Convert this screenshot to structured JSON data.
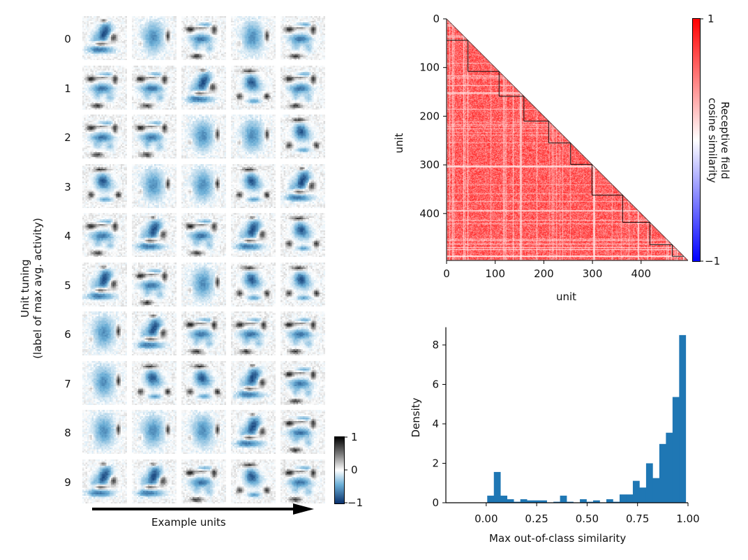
{
  "left_panel": {
    "ylabel_line1": "Unit tuning",
    "ylabel_line2": "(label of max avg. activity)",
    "xlabel": "Example units",
    "row_labels": [
      "0",
      "1",
      "2",
      "3",
      "4",
      "5",
      "6",
      "7",
      "8",
      "9"
    ],
    "tile_patterns": [
      [
        "A",
        "B",
        "C",
        "B",
        "C"
      ],
      [
        "C",
        "C",
        "A",
        "D",
        "C"
      ],
      [
        "C",
        "C",
        "B",
        "B",
        "D"
      ],
      [
        "D",
        "B",
        "B",
        "D",
        "A"
      ],
      [
        "C",
        "A",
        "C",
        "A",
        "D"
      ],
      [
        "A",
        "C",
        "B",
        "D",
        "D"
      ],
      [
        "B",
        "A",
        "C",
        "C",
        "C"
      ],
      [
        "B",
        "D",
        "D",
        "A",
        "C"
      ],
      [
        "B",
        "B",
        "B",
        "A",
        "C"
      ],
      [
        "A",
        "A",
        "C",
        "D",
        "C"
      ]
    ],
    "colorbar": {
      "colormap": "black-white-blue",
      "ticks": [
        "1",
        "0",
        "−1"
      ],
      "range": [
        -1,
        1
      ],
      "colors": {
        "high": "#000000",
        "mid": "#ffffff",
        "low": "#08306b"
      }
    }
  },
  "chart_data": [
    {
      "type": "heatmap",
      "title": "",
      "xlabel": "unit",
      "ylabel": "unit",
      "x_ticks": [
        "0",
        "100",
        "200",
        "300",
        "400"
      ],
      "y_ticks": [
        "0",
        "100",
        "200",
        "300",
        "400"
      ],
      "n_units": 497,
      "lower_triangle_only": true,
      "class_block_boundaries": [
        0,
        44,
        108,
        159,
        210,
        255,
        299,
        362,
        418,
        464,
        488
      ],
      "colorbar": {
        "label_line1": "Receptive field",
        "label_line2": "cosine similarity",
        "range": [
          -1,
          1
        ],
        "ticks": [
          "1",
          "−1"
        ],
        "colors": {
          "high": "#ff0000",
          "mid": "#ffffff",
          "low": "#0000ff"
        }
      }
    },
    {
      "type": "bar",
      "subtype": "histogram",
      "xlabel": "Max out-of-class similarity",
      "ylabel": "Density",
      "x_ticks": [
        "0.00",
        "0.25",
        "0.50",
        "0.75",
        "1.00"
      ],
      "y_ticks": [
        "0",
        "2",
        "4",
        "6",
        "8"
      ],
      "xlim": [
        -0.2,
        1.0
      ],
      "ylim": [
        0,
        8.9
      ],
      "bin_start": 0.005,
      "bin_width": 0.0328,
      "values": [
        0.36,
        1.56,
        0.36,
        0.18,
        0.05,
        0.18,
        0.12,
        0.12,
        0.12,
        0.0,
        0.05,
        0.36,
        0.05,
        0.0,
        0.18,
        0.05,
        0.12,
        0.0,
        0.18,
        0.05,
        0.42,
        0.42,
        1.11,
        0.77,
        2.0,
        1.25,
        2.98,
        3.55,
        5.36,
        8.5
      ],
      "color": "#1f77b4"
    }
  ]
}
